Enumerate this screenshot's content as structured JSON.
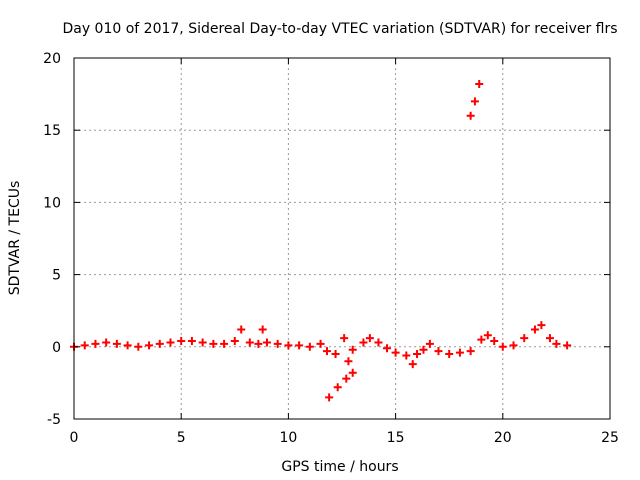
{
  "chart_data": {
    "type": "scatter",
    "title": "Day 010 of 2017, Sidereal Day-to-day VTEC variation (SDTVAR) for receiver flrs",
    "xlabel": "GPS time / hours",
    "ylabel": "SDTVAR / TECUs",
    "xlim": [
      0,
      25
    ],
    "ylim": [
      -5,
      20
    ],
    "xticks": [
      0,
      5,
      10,
      15,
      20,
      25
    ],
    "yticks": [
      -5,
      0,
      5,
      10,
      15,
      20
    ],
    "grid": true,
    "grid_style": "dotted",
    "marker": "plus",
    "series": [
      {
        "name": "SDTVAR",
        "color": "#ff0000",
        "x": [
          0.0,
          0.5,
          1.0,
          1.5,
          2.0,
          2.5,
          3.0,
          3.5,
          4.0,
          4.5,
          5.0,
          5.5,
          6.0,
          6.5,
          7.0,
          7.5,
          7.8,
          8.2,
          8.6,
          8.8,
          9.0,
          9.5,
          10.0,
          10.5,
          11.0,
          11.5,
          11.8,
          12.2,
          12.6,
          12.8,
          13.0,
          13.5,
          13.8,
          14.2,
          14.6,
          15.0,
          15.5,
          15.8,
          16.0,
          16.3,
          16.6,
          17.0,
          17.5,
          18.0,
          18.5,
          19.0,
          19.3,
          19.6,
          20.0,
          20.5,
          21.0,
          21.5,
          21.8,
          22.2,
          22.5,
          23.0,
          11.9,
          12.3,
          12.7,
          13.0,
          18.5,
          18.7,
          18.9
        ],
        "y": [
          0.0,
          0.1,
          0.2,
          0.3,
          0.2,
          0.1,
          0.0,
          0.1,
          0.2,
          0.3,
          0.4,
          0.4,
          0.3,
          0.2,
          0.2,
          0.4,
          1.2,
          0.3,
          0.2,
          1.2,
          0.3,
          0.2,
          0.1,
          0.1,
          0.0,
          0.2,
          -0.3,
          -0.5,
          0.6,
          -1.0,
          -0.2,
          0.3,
          0.6,
          0.3,
          -0.1,
          -0.4,
          -0.6,
          -1.2,
          -0.5,
          -0.2,
          0.2,
          -0.3,
          -0.5,
          -0.4,
          -0.3,
          0.5,
          0.8,
          0.4,
          0.0,
          0.1,
          0.6,
          1.2,
          1.5,
          0.6,
          0.2,
          0.1,
          -3.5,
          -2.8,
          -2.2,
          -1.8,
          16.0,
          17.0,
          18.2
        ]
      }
    ]
  }
}
